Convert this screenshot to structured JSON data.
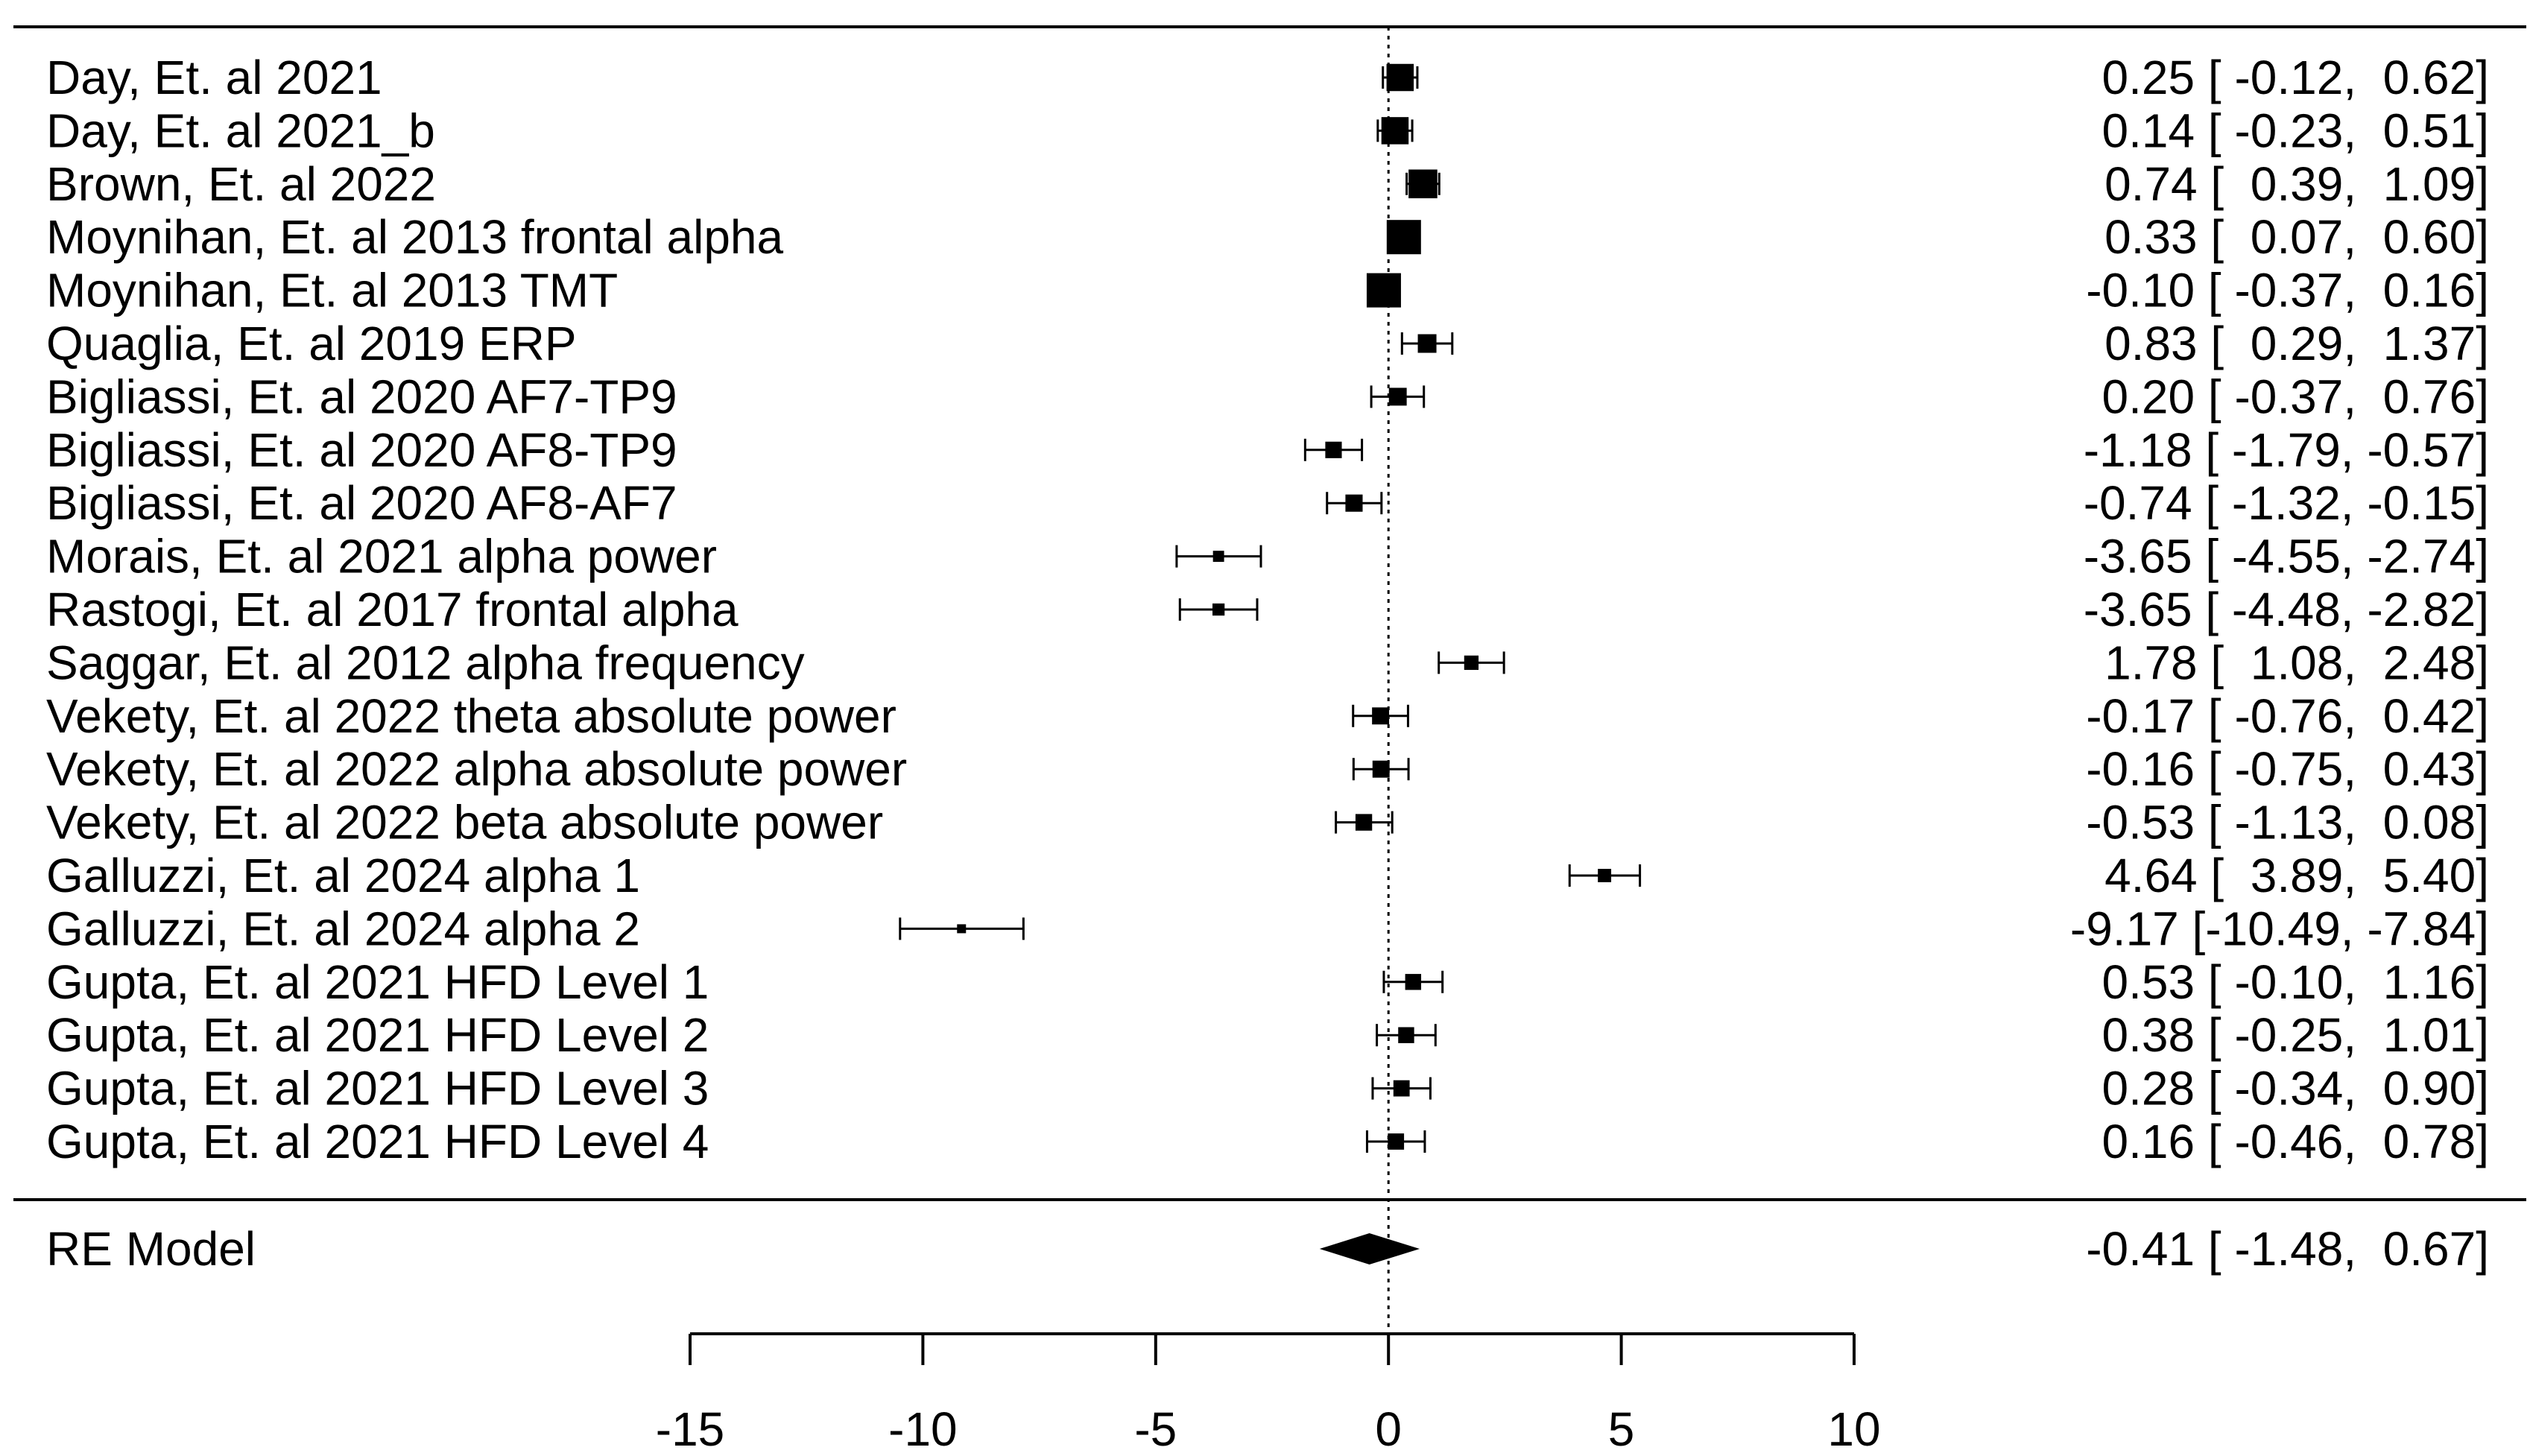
{
  "chart_data": {
    "type": "forest",
    "title": "",
    "xlabel": "",
    "xlim": [
      -15,
      10
    ],
    "x_ticks": [
      -15,
      -10,
      -5,
      0,
      5,
      10
    ],
    "reference_line": 0,
    "studies": [
      {
        "label": "Day, Et. al 2021",
        "estimate": 0.25,
        "ci_low": -0.12,
        "ci_high": 0.62,
        "text": "0.25 [ -0.12,  0.62]"
      },
      {
        "label": "Day, Et. al 2021_b",
        "estimate": 0.14,
        "ci_low": -0.23,
        "ci_high": 0.51,
        "text": "0.14 [ -0.23,  0.51]"
      },
      {
        "label": "Brown, Et. al 2022",
        "estimate": 0.74,
        "ci_low": 0.39,
        "ci_high": 1.09,
        "text": "0.74 [  0.39,  1.09]"
      },
      {
        "label": "Moynihan, Et. al 2013 frontal alpha",
        "estimate": 0.33,
        "ci_low": 0.07,
        "ci_high": 0.6,
        "text": "0.33 [  0.07,  0.60]"
      },
      {
        "label": "Moynihan, Et. al 2013 TMT",
        "estimate": -0.1,
        "ci_low": -0.37,
        "ci_high": 0.16,
        "text": "-0.10 [ -0.37,  0.16]"
      },
      {
        "label": "Quaglia, Et. al 2019 ERP",
        "estimate": 0.83,
        "ci_low": 0.29,
        "ci_high": 1.37,
        "text": "0.83 [  0.29,  1.37]"
      },
      {
        "label": "Bigliassi, Et. al 2020 AF7-TP9",
        "estimate": 0.2,
        "ci_low": -0.37,
        "ci_high": 0.76,
        "text": "0.20 [ -0.37,  0.76]"
      },
      {
        "label": "Bigliassi, Et. al 2020 AF8-TP9",
        "estimate": -1.18,
        "ci_low": -1.79,
        "ci_high": -0.57,
        "text": "-1.18 [ -1.79, -0.57]"
      },
      {
        "label": "Bigliassi, Et. al 2020 AF8-AF7",
        "estimate": -0.74,
        "ci_low": -1.32,
        "ci_high": -0.15,
        "text": "-0.74 [ -1.32, -0.15]"
      },
      {
        "label": "Morais, Et. al 2021 alpha power",
        "estimate": -3.65,
        "ci_low": -4.55,
        "ci_high": -2.74,
        "text": "-3.65 [ -4.55, -2.74]"
      },
      {
        "label": "Rastogi, Et. al 2017 frontal alpha",
        "estimate": -3.65,
        "ci_low": -4.48,
        "ci_high": -2.82,
        "text": "-3.65 [ -4.48, -2.82]"
      },
      {
        "label": "Saggar, Et. al 2012 alpha frequency",
        "estimate": 1.78,
        "ci_low": 1.08,
        "ci_high": 2.48,
        "text": "1.78 [  1.08,  2.48]"
      },
      {
        "label": "Vekety, Et. al 2022 theta absolute power",
        "estimate": -0.17,
        "ci_low": -0.76,
        "ci_high": 0.42,
        "text": "-0.17 [ -0.76,  0.42]"
      },
      {
        "label": "Vekety, Et. al 2022 alpha absolute power",
        "estimate": -0.16,
        "ci_low": -0.75,
        "ci_high": 0.43,
        "text": "-0.16 [ -0.75,  0.43]"
      },
      {
        "label": "Vekety, Et. al 2022 beta absolute power",
        "estimate": -0.53,
        "ci_low": -1.13,
        "ci_high": 0.08,
        "text": "-0.53 [ -1.13,  0.08]"
      },
      {
        "label": "Galluzzi, Et. al 2024 alpha 1",
        "estimate": 4.64,
        "ci_low": 3.89,
        "ci_high": 5.4,
        "text": "4.64 [  3.89,  5.40]"
      },
      {
        "label": "Galluzzi, Et. al 2024 alpha 2",
        "estimate": -9.17,
        "ci_low": -10.49,
        "ci_high": -7.84,
        "text": "-9.17 [-10.49, -7.84]"
      },
      {
        "label": "Gupta, Et. al 2021 HFD Level 1",
        "estimate": 0.53,
        "ci_low": -0.1,
        "ci_high": 1.16,
        "text": "0.53 [ -0.10,  1.16]"
      },
      {
        "label": "Gupta, Et. al 2021 HFD Level 2",
        "estimate": 0.38,
        "ci_low": -0.25,
        "ci_high": 1.01,
        "text": "0.38 [ -0.25,  1.01]"
      },
      {
        "label": "Gupta, Et. al 2021 HFD Level 3",
        "estimate": 0.28,
        "ci_low": -0.34,
        "ci_high": 0.9,
        "text": "0.28 [ -0.34,  0.90]"
      },
      {
        "label": "Gupta, Et. al 2021 HFD Level 4",
        "estimate": 0.16,
        "ci_low": -0.46,
        "ci_high": 0.78,
        "text": "0.16 [ -0.46,  0.78]"
      }
    ],
    "summary": {
      "label": "RE Model",
      "estimate": -0.41,
      "ci_low": -1.48,
      "ci_high": 0.67,
      "text": "-0.41 [ -1.48,  0.67]"
    }
  }
}
